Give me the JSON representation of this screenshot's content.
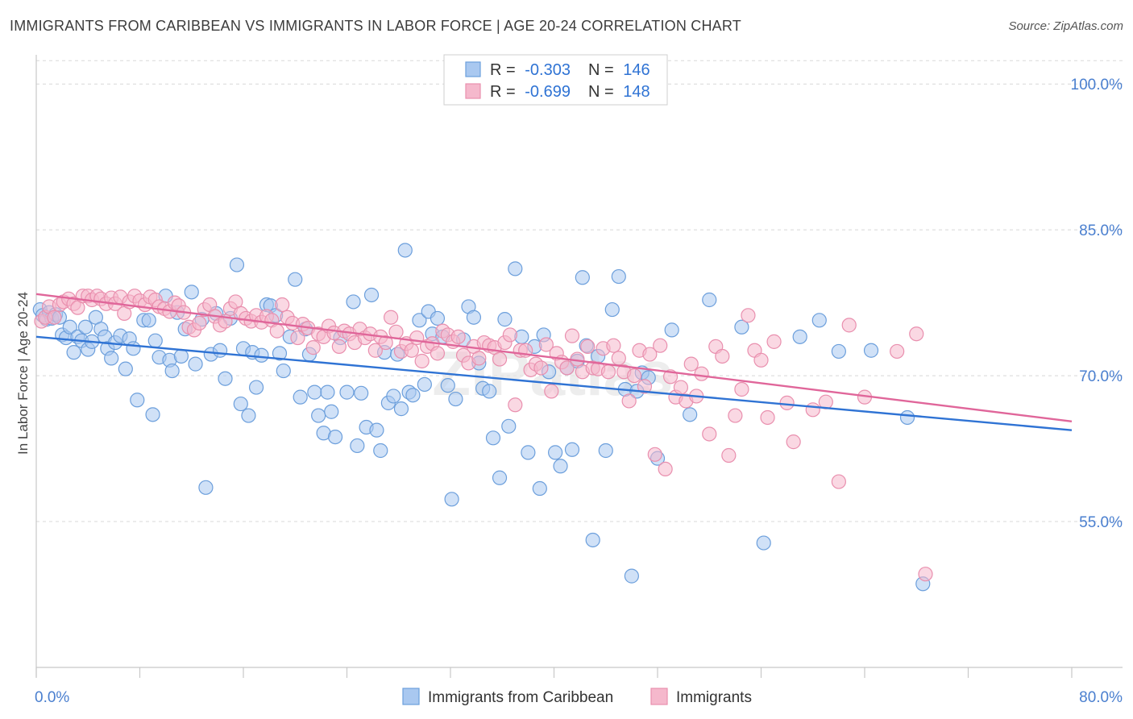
{
  "header": {
    "title": "IMMIGRANTS FROM CARIBBEAN VS IMMIGRANTS IN LABOR FORCE | AGE 20-24 CORRELATION CHART",
    "source": "Source: ZipAtlas.com"
  },
  "watermark": "ZIPatlas",
  "colors": {
    "blue_fill": "#a9c8f0",
    "blue_stroke": "#6c9fdc",
    "blue_line": "#2f73d4",
    "pink_fill": "#f5b8cc",
    "pink_stroke": "#e98fae",
    "pink_line": "#e0669a",
    "tick_label": "#4a7fcf",
    "grid": "#d8d8d8"
  },
  "legend_box": {
    "rows": [
      {
        "r_label": "R =",
        "r_value": "-0.303",
        "n_label": "N =",
        "n_value": "146"
      },
      {
        "r_label": "R =",
        "r_value": "-0.699",
        "n_label": "N =",
        "n_value": "148"
      }
    ]
  },
  "chart_data": {
    "type": "scatter",
    "title": "IMMIGRANTS FROM CARIBBEAN VS IMMIGRANTS IN LABOR FORCE | AGE 20-24 CORRELATION CHART",
    "xlabel": "",
    "ylabel": "In Labor Force | Age 20-24",
    "xlim": [
      0,
      80
    ],
    "ylim": [
      40,
      103
    ],
    "x_tick_labels": [
      "0.0%",
      "80.0%"
    ],
    "y_ticks": [
      55,
      70,
      85,
      100
    ],
    "y_tick_labels": [
      "55.0%",
      "70.0%",
      "85.0%",
      "100.0%"
    ],
    "grid": true,
    "legend_position": "bottom",
    "series": [
      {
        "name": "Immigrants from Caribbean",
        "r": -0.303,
        "n": 146,
        "trend": {
          "x": [
            0,
            80
          ],
          "y": [
            74.0,
            64.4
          ]
        },
        "points": [
          [
            0.3,
            76.8
          ],
          [
            0.5,
            76.2
          ],
          [
            0.8,
            75.8
          ],
          [
            1.0,
            76.5
          ],
          [
            1.2,
            75.9
          ],
          [
            1.5,
            76.3
          ],
          [
            1.8,
            76.0
          ],
          [
            2.0,
            74.2
          ],
          [
            2.3,
            73.9
          ],
          [
            2.6,
            75.0
          ],
          [
            2.9,
            72.4
          ],
          [
            3.2,
            74.0
          ],
          [
            3.5,
            73.6
          ],
          [
            3.8,
            75.0
          ],
          [
            4.0,
            72.7
          ],
          [
            4.3,
            73.5
          ],
          [
            4.6,
            76.0
          ],
          [
            5.0,
            74.8
          ],
          [
            5.3,
            74.0
          ],
          [
            5.5,
            72.8
          ],
          [
            5.8,
            71.8
          ],
          [
            6.1,
            73.4
          ],
          [
            6.5,
            74.1
          ],
          [
            6.9,
            70.7
          ],
          [
            7.2,
            73.8
          ],
          [
            7.5,
            72.8
          ],
          [
            7.8,
            67.5
          ],
          [
            8.3,
            75.7
          ],
          [
            8.7,
            75.7
          ],
          [
            9.0,
            66.0
          ],
          [
            9.2,
            73.6
          ],
          [
            9.5,
            71.9
          ],
          [
            10.0,
            78.2
          ],
          [
            10.3,
            71.6
          ],
          [
            10.5,
            70.5
          ],
          [
            10.9,
            76.5
          ],
          [
            11.2,
            72.0
          ],
          [
            11.5,
            74.8
          ],
          [
            12.0,
            78.6
          ],
          [
            12.3,
            71.2
          ],
          [
            12.8,
            75.8
          ],
          [
            13.1,
            58.5
          ],
          [
            13.5,
            72.2
          ],
          [
            13.9,
            76.4
          ],
          [
            14.2,
            72.6
          ],
          [
            14.6,
            69.7
          ],
          [
            15.0,
            75.9
          ],
          [
            15.5,
            81.4
          ],
          [
            15.8,
            67.1
          ],
          [
            16.0,
            72.8
          ],
          [
            16.4,
            65.9
          ],
          [
            16.7,
            72.4
          ],
          [
            17.0,
            68.8
          ],
          [
            17.4,
            72.1
          ],
          [
            17.8,
            77.3
          ],
          [
            18.1,
            77.2
          ],
          [
            18.5,
            76.2
          ],
          [
            18.8,
            72.3
          ],
          [
            19.1,
            70.5
          ],
          [
            19.6,
            74.0
          ],
          [
            20.0,
            79.9
          ],
          [
            20.4,
            67.8
          ],
          [
            20.8,
            74.8
          ],
          [
            21.1,
            72.2
          ],
          [
            21.5,
            68.3
          ],
          [
            21.8,
            65.9
          ],
          [
            22.2,
            64.1
          ],
          [
            22.5,
            68.3
          ],
          [
            22.8,
            66.3
          ],
          [
            23.1,
            63.7
          ],
          [
            23.5,
            73.9
          ],
          [
            24.0,
            68.3
          ],
          [
            24.5,
            77.6
          ],
          [
            24.8,
            62.8
          ],
          [
            25.1,
            68.2
          ],
          [
            25.5,
            64.7
          ],
          [
            25.9,
            78.3
          ],
          [
            26.3,
            64.4
          ],
          [
            26.6,
            62.3
          ],
          [
            26.9,
            72.4
          ],
          [
            27.2,
            67.2
          ],
          [
            27.6,
            67.9
          ],
          [
            27.9,
            72.2
          ],
          [
            28.2,
            66.6
          ],
          [
            28.5,
            82.9
          ],
          [
            28.8,
            68.3
          ],
          [
            29.1,
            68.0
          ],
          [
            29.6,
            75.7
          ],
          [
            30.0,
            69.1
          ],
          [
            30.3,
            76.6
          ],
          [
            30.6,
            74.3
          ],
          [
            31.0,
            75.9
          ],
          [
            31.4,
            74.0
          ],
          [
            31.8,
            69.0
          ],
          [
            32.1,
            57.3
          ],
          [
            32.4,
            67.6
          ],
          [
            33.0,
            73.7
          ],
          [
            33.4,
            77.1
          ],
          [
            33.8,
            76.0
          ],
          [
            34.2,
            71.3
          ],
          [
            34.5,
            68.7
          ],
          [
            35.0,
            68.4
          ],
          [
            35.3,
            63.6
          ],
          [
            35.8,
            59.5
          ],
          [
            36.2,
            75.8
          ],
          [
            36.5,
            64.8
          ],
          [
            37.0,
            81.0
          ],
          [
            37.5,
            74.0
          ],
          [
            38.0,
            62.1
          ],
          [
            38.5,
            73.0
          ],
          [
            38.9,
            58.4
          ],
          [
            39.2,
            74.2
          ],
          [
            39.6,
            70.4
          ],
          [
            40.1,
            62.1
          ],
          [
            40.5,
            60.7
          ],
          [
            41.0,
            70.8
          ],
          [
            41.4,
            62.4
          ],
          [
            41.8,
            71.5
          ],
          [
            42.2,
            80.1
          ],
          [
            42.5,
            73.1
          ],
          [
            43.0,
            53.1
          ],
          [
            43.4,
            72.0
          ],
          [
            44.0,
            62.3
          ],
          [
            44.5,
            76.8
          ],
          [
            45.0,
            80.2
          ],
          [
            45.5,
            68.6
          ],
          [
            46.0,
            49.4
          ],
          [
            46.4,
            68.4
          ],
          [
            46.8,
            70.3
          ],
          [
            47.3,
            69.8
          ],
          [
            48.0,
            61.5
          ],
          [
            49.1,
            74.7
          ],
          [
            50.5,
            66.0
          ],
          [
            52.0,
            77.8
          ],
          [
            54.5,
            75.0
          ],
          [
            56.2,
            52.8
          ],
          [
            59.0,
            74.0
          ],
          [
            60.5,
            75.7
          ],
          [
            62.0,
            72.5
          ],
          [
            64.5,
            72.6
          ],
          [
            67.3,
            65.7
          ],
          [
            68.5,
            48.6
          ]
        ]
      },
      {
        "name": "Immigrants",
        "r": -0.699,
        "n": 148,
        "trend": {
          "x": [
            0,
            80
          ],
          "y": [
            78.4,
            65.3
          ]
        },
        "points": [
          [
            0.4,
            75.6
          ],
          [
            0.7,
            76.0
          ],
          [
            1.0,
            77.1
          ],
          [
            1.4,
            76.0
          ],
          [
            1.8,
            77.3
          ],
          [
            2.1,
            77.6
          ],
          [
            2.5,
            77.9
          ],
          [
            2.9,
            77.4
          ],
          [
            3.2,
            77.0
          ],
          [
            3.6,
            78.2
          ],
          [
            4.0,
            78.2
          ],
          [
            4.3,
            77.8
          ],
          [
            4.7,
            78.2
          ],
          [
            5.0,
            77.9
          ],
          [
            5.4,
            77.4
          ],
          [
            5.8,
            78.0
          ],
          [
            6.1,
            77.4
          ],
          [
            6.5,
            78.1
          ],
          [
            6.8,
            76.4
          ],
          [
            7.2,
            77.6
          ],
          [
            7.6,
            78.2
          ],
          [
            8.0,
            77.7
          ],
          [
            8.4,
            77.3
          ],
          [
            8.8,
            78.1
          ],
          [
            9.2,
            77.8
          ],
          [
            9.5,
            77.1
          ],
          [
            9.9,
            76.9
          ],
          [
            10.3,
            76.6
          ],
          [
            10.7,
            77.5
          ],
          [
            11.0,
            77.2
          ],
          [
            11.4,
            76.5
          ],
          [
            11.8,
            75.0
          ],
          [
            12.2,
            74.7
          ],
          [
            12.6,
            75.4
          ],
          [
            13.0,
            76.8
          ],
          [
            13.4,
            77.3
          ],
          [
            13.8,
            76.1
          ],
          [
            14.2,
            75.2
          ],
          [
            14.6,
            75.6
          ],
          [
            15.0,
            76.9
          ],
          [
            15.4,
            77.6
          ],
          [
            15.8,
            76.4
          ],
          [
            16.2,
            75.9
          ],
          [
            16.6,
            75.6
          ],
          [
            17.0,
            76.2
          ],
          [
            17.4,
            75.5
          ],
          [
            17.8,
            76.1
          ],
          [
            18.2,
            75.7
          ],
          [
            18.6,
            74.6
          ],
          [
            19.0,
            77.3
          ],
          [
            19.4,
            76.0
          ],
          [
            19.8,
            75.4
          ],
          [
            20.2,
            73.9
          ],
          [
            20.6,
            75.3
          ],
          [
            21.0,
            74.9
          ],
          [
            21.4,
            72.9
          ],
          [
            21.8,
            74.3
          ],
          [
            22.2,
            74.0
          ],
          [
            22.6,
            75.1
          ],
          [
            23.0,
            74.4
          ],
          [
            23.4,
            73.0
          ],
          [
            23.8,
            74.6
          ],
          [
            24.2,
            74.3
          ],
          [
            24.6,
            73.4
          ],
          [
            25.0,
            74.8
          ],
          [
            25.4,
            73.9
          ],
          [
            25.8,
            74.3
          ],
          [
            26.2,
            72.6
          ],
          [
            26.6,
            74.0
          ],
          [
            27.0,
            73.4
          ],
          [
            27.4,
            76.0
          ],
          [
            27.8,
            74.5
          ],
          [
            28.2,
            72.5
          ],
          [
            28.6,
            73.3
          ],
          [
            29.0,
            72.6
          ],
          [
            29.4,
            73.9
          ],
          [
            29.8,
            71.5
          ],
          [
            30.2,
            73.0
          ],
          [
            30.6,
            73.3
          ],
          [
            31.0,
            72.3
          ],
          [
            31.4,
            74.6
          ],
          [
            31.8,
            74.2
          ],
          [
            32.2,
            73.5
          ],
          [
            32.6,
            74.0
          ],
          [
            33.0,
            72.1
          ],
          [
            33.4,
            71.3
          ],
          [
            33.8,
            73.0
          ],
          [
            34.2,
            71.8
          ],
          [
            34.6,
            73.4
          ],
          [
            35.0,
            73.1
          ],
          [
            35.4,
            72.9
          ],
          [
            35.8,
            71.7
          ],
          [
            36.2,
            73.4
          ],
          [
            36.6,
            74.2
          ],
          [
            37.0,
            67.0
          ],
          [
            37.4,
            72.6
          ],
          [
            37.8,
            72.6
          ],
          [
            38.2,
            70.6
          ],
          [
            38.6,
            71.2
          ],
          [
            39.0,
            70.8
          ],
          [
            39.4,
            73.2
          ],
          [
            39.8,
            68.4
          ],
          [
            40.2,
            72.3
          ],
          [
            40.6,
            71.4
          ],
          [
            41.0,
            70.8
          ],
          [
            41.4,
            74.1
          ],
          [
            41.8,
            71.7
          ],
          [
            42.2,
            70.4
          ],
          [
            42.6,
            73.0
          ],
          [
            43.0,
            70.8
          ],
          [
            43.4,
            70.7
          ],
          [
            43.8,
            72.8
          ],
          [
            44.2,
            70.4
          ],
          [
            44.6,
            73.1
          ],
          [
            45.0,
            71.8
          ],
          [
            45.4,
            70.4
          ],
          [
            45.8,
            67.4
          ],
          [
            46.2,
            70.0
          ],
          [
            46.6,
            72.6
          ],
          [
            47.0,
            68.9
          ],
          [
            47.4,
            72.2
          ],
          [
            47.8,
            61.9
          ],
          [
            48.2,
            73.1
          ],
          [
            48.6,
            60.4
          ],
          [
            49.0,
            69.9
          ],
          [
            49.4,
            67.8
          ],
          [
            49.8,
            68.8
          ],
          [
            50.2,
            67.4
          ],
          [
            50.6,
            71.2
          ],
          [
            51.0,
            67.9
          ],
          [
            51.4,
            70.2
          ],
          [
            52.0,
            64.0
          ],
          [
            52.5,
            73.0
          ],
          [
            53.0,
            72.0
          ],
          [
            53.5,
            61.8
          ],
          [
            54.0,
            65.9
          ],
          [
            54.5,
            68.6
          ],
          [
            55.0,
            76.2
          ],
          [
            55.5,
            72.6
          ],
          [
            56.0,
            71.6
          ],
          [
            56.5,
            65.7
          ],
          [
            57.0,
            73.5
          ],
          [
            58.0,
            67.2
          ],
          [
            58.5,
            63.2
          ],
          [
            60.0,
            66.5
          ],
          [
            61.0,
            67.3
          ],
          [
            62.0,
            59.1
          ],
          [
            62.8,
            75.2
          ],
          [
            64.0,
            67.8
          ],
          [
            66.5,
            72.5
          ],
          [
            68.0,
            74.3
          ],
          [
            68.7,
            49.6
          ]
        ]
      }
    ]
  }
}
